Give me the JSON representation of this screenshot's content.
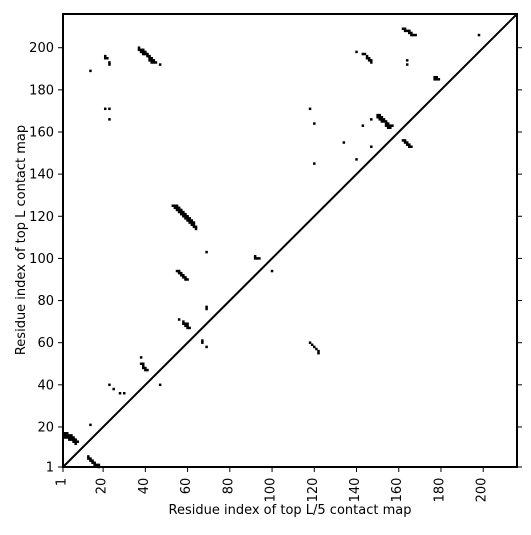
{
  "chart_data": {
    "type": "scatter",
    "title": "",
    "xlabel": "Residue index of top L/5 contact map",
    "ylabel": "Residue index of top L contact map",
    "xlim": [
      1,
      216
    ],
    "ylim": [
      1,
      216
    ],
    "x_ticks": [
      1,
      40,
      80,
      120,
      160,
      200
    ],
    "x_tick_labels": [
      "1",
      "40",
      "80",
      "120",
      "160",
      "200"
    ],
    "y_ticks": [
      1,
      20,
      40,
      60,
      80,
      100,
      120,
      140,
      160,
      180,
      200
    ],
    "y_tick_labels": [
      "1",
      "20",
      "40",
      "60",
      "80",
      "100",
      "120",
      "140",
      "160",
      "180",
      "200"
    ],
    "x_minor_ticks": [
      20,
      60,
      100,
      140,
      180
    ],
    "x_minor_tick_labels": [
      "20",
      "60",
      "100",
      "140",
      "180"
    ],
    "grid": false,
    "diagonal_line": true,
    "marker_color": "#000000",
    "lower_triangle_series": {
      "name": "",
      "points": [
        [
          2,
          17
        ],
        [
          3,
          17
        ],
        [
          4,
          16
        ],
        [
          5,
          16
        ],
        [
          3,
          16
        ],
        [
          2,
          16
        ],
        [
          2,
          15
        ],
        [
          3,
          15
        ],
        [
          4,
          15
        ],
        [
          5,
          15
        ],
        [
          6,
          15
        ],
        [
          6,
          14
        ],
        [
          7,
          14
        ],
        [
          5,
          14
        ],
        [
          4,
          14
        ],
        [
          6,
          13
        ],
        [
          7,
          13
        ],
        [
          8,
          13
        ],
        [
          7,
          12
        ],
        [
          14,
          21
        ],
        [
          13,
          6
        ],
        [
          13,
          5
        ],
        [
          14,
          5
        ],
        [
          14,
          4
        ],
        [
          15,
          4
        ],
        [
          15,
          3
        ],
        [
          16,
          3
        ],
        [
          16,
          2
        ],
        [
          17,
          2
        ],
        [
          18,
          2
        ],
        [
          18,
          1
        ],
        [
          23,
          40
        ],
        [
          25,
          38
        ],
        [
          28,
          36
        ],
        [
          30,
          36
        ],
        [
          38,
          53
        ],
        [
          38,
          50
        ],
        [
          39,
          49
        ],
        [
          39,
          48
        ],
        [
          40,
          48
        ],
        [
          40,
          47
        ],
        [
          41,
          47
        ],
        [
          39,
          50
        ],
        [
          47,
          40
        ],
        [
          55,
          94
        ],
        [
          56,
          94
        ],
        [
          56,
          93
        ],
        [
          57,
          93
        ],
        [
          57,
          92
        ],
        [
          58,
          92
        ],
        [
          58,
          91
        ],
        [
          59,
          91
        ],
        [
          59,
          90
        ],
        [
          60,
          90
        ],
        [
          56,
          71
        ],
        [
          58,
          70
        ],
        [
          58,
          69
        ],
        [
          59,
          69
        ],
        [
          60,
          69
        ],
        [
          59,
          68
        ],
        [
          60,
          68
        ],
        [
          60,
          67
        ],
        [
          61,
          67
        ],
        [
          67,
          61
        ],
        [
          67,
          60
        ],
        [
          69,
          58
        ],
        [
          69,
          77
        ],
        [
          69,
          76
        ],
        [
          92,
          101
        ],
        [
          92,
          100
        ],
        [
          93,
          100
        ],
        [
          94,
          100
        ],
        [
          100,
          94
        ],
        [
          118,
          60
        ],
        [
          119,
          59
        ],
        [
          120,
          58
        ],
        [
          121,
          57
        ],
        [
          122,
          56
        ],
        [
          122,
          55
        ]
      ]
    },
    "upper_triangle_series": {
      "name": "",
      "points": [
        [
          21,
          196
        ],
        [
          22,
          195
        ],
        [
          21,
          195
        ],
        [
          23,
          193
        ],
        [
          23,
          192
        ],
        [
          14,
          189
        ],
        [
          21,
          171
        ],
        [
          23,
          171
        ],
        [
          23,
          166
        ],
        [
          37,
          200
        ],
        [
          37,
          199
        ],
        [
          38,
          199
        ],
        [
          39,
          199
        ],
        [
          38,
          198
        ],
        [
          39,
          198
        ],
        [
          40,
          198
        ],
        [
          41,
          197
        ],
        [
          40,
          197
        ],
        [
          39,
          197
        ],
        [
          41,
          196
        ],
        [
          42,
          196
        ],
        [
          42,
          195
        ],
        [
          43,
          195
        ],
        [
          42,
          194
        ],
        [
          43,
          194
        ],
        [
          44,
          194
        ],
        [
          43,
          193
        ],
        [
          44,
          193
        ],
        [
          45,
          193
        ],
        [
          47,
          192
        ],
        [
          53,
          125
        ],
        [
          54,
          125
        ],
        [
          55,
          125
        ],
        [
          55,
          124
        ],
        [
          56,
          124
        ],
        [
          54,
          124
        ],
        [
          55,
          123
        ],
        [
          56,
          123
        ],
        [
          57,
          123
        ],
        [
          56,
          122
        ],
        [
          57,
          122
        ],
        [
          58,
          122
        ],
        [
          57,
          121
        ],
        [
          58,
          121
        ],
        [
          59,
          121
        ],
        [
          58,
          120
        ],
        [
          59,
          120
        ],
        [
          60,
          120
        ],
        [
          59,
          119
        ],
        [
          60,
          119
        ],
        [
          61,
          119
        ],
        [
          60,
          118
        ],
        [
          61,
          118
        ],
        [
          62,
          118
        ],
        [
          61,
          117
        ],
        [
          62,
          117
        ],
        [
          63,
          117
        ],
        [
          62,
          116
        ],
        [
          63,
          116
        ],
        [
          63,
          115
        ],
        [
          64,
          115
        ],
        [
          64,
          114
        ],
        [
          69,
          103
        ],
        [
          140,
          198
        ],
        [
          143,
          197
        ],
        [
          144,
          197
        ],
        [
          145,
          196
        ],
        [
          145,
          195
        ],
        [
          146,
          195
        ],
        [
          146,
          194
        ],
        [
          147,
          194
        ],
        [
          147,
          193
        ],
        [
          118,
          171
        ],
        [
          120,
          164
        ],
        [
          120,
          145
        ],
        [
          134,
          155
        ],
        [
          140,
          147
        ],
        [
          143,
          163
        ],
        [
          147,
          166
        ],
        [
          147,
          153
        ],
        [
          150,
          168
        ],
        [
          151,
          168
        ],
        [
          151,
          167
        ],
        [
          150,
          167
        ],
        [
          152,
          167
        ],
        [
          151,
          166
        ],
        [
          152,
          166
        ],
        [
          153,
          166
        ],
        [
          152,
          165
        ],
        [
          153,
          165
        ],
        [
          154,
          165
        ],
        [
          154,
          164
        ],
        [
          155,
          164
        ],
        [
          154,
          163
        ],
        [
          155,
          163
        ],
        [
          156,
          163
        ],
        [
          157,
          163
        ],
        [
          155,
          162
        ],
        [
          156,
          162
        ],
        [
          162,
          156
        ],
        [
          163,
          156
        ],
        [
          163,
          155
        ],
        [
          164,
          155
        ],
        [
          164,
          154
        ],
        [
          165,
          154
        ],
        [
          165,
          153
        ],
        [
          166,
          153
        ],
        [
          162,
          209
        ],
        [
          163,
          209
        ],
        [
          163,
          208
        ],
        [
          164,
          208
        ],
        [
          165,
          208
        ],
        [
          165,
          207
        ],
        [
          166,
          207
        ],
        [
          166,
          206
        ],
        [
          167,
          206
        ],
        [
          168,
          206
        ],
        [
          164,
          194
        ],
        [
          164,
          192
        ],
        [
          177,
          186
        ],
        [
          178,
          186
        ],
        [
          178,
          185
        ],
        [
          179,
          185
        ],
        [
          177,
          185
        ],
        [
          198,
          206
        ]
      ]
    }
  }
}
